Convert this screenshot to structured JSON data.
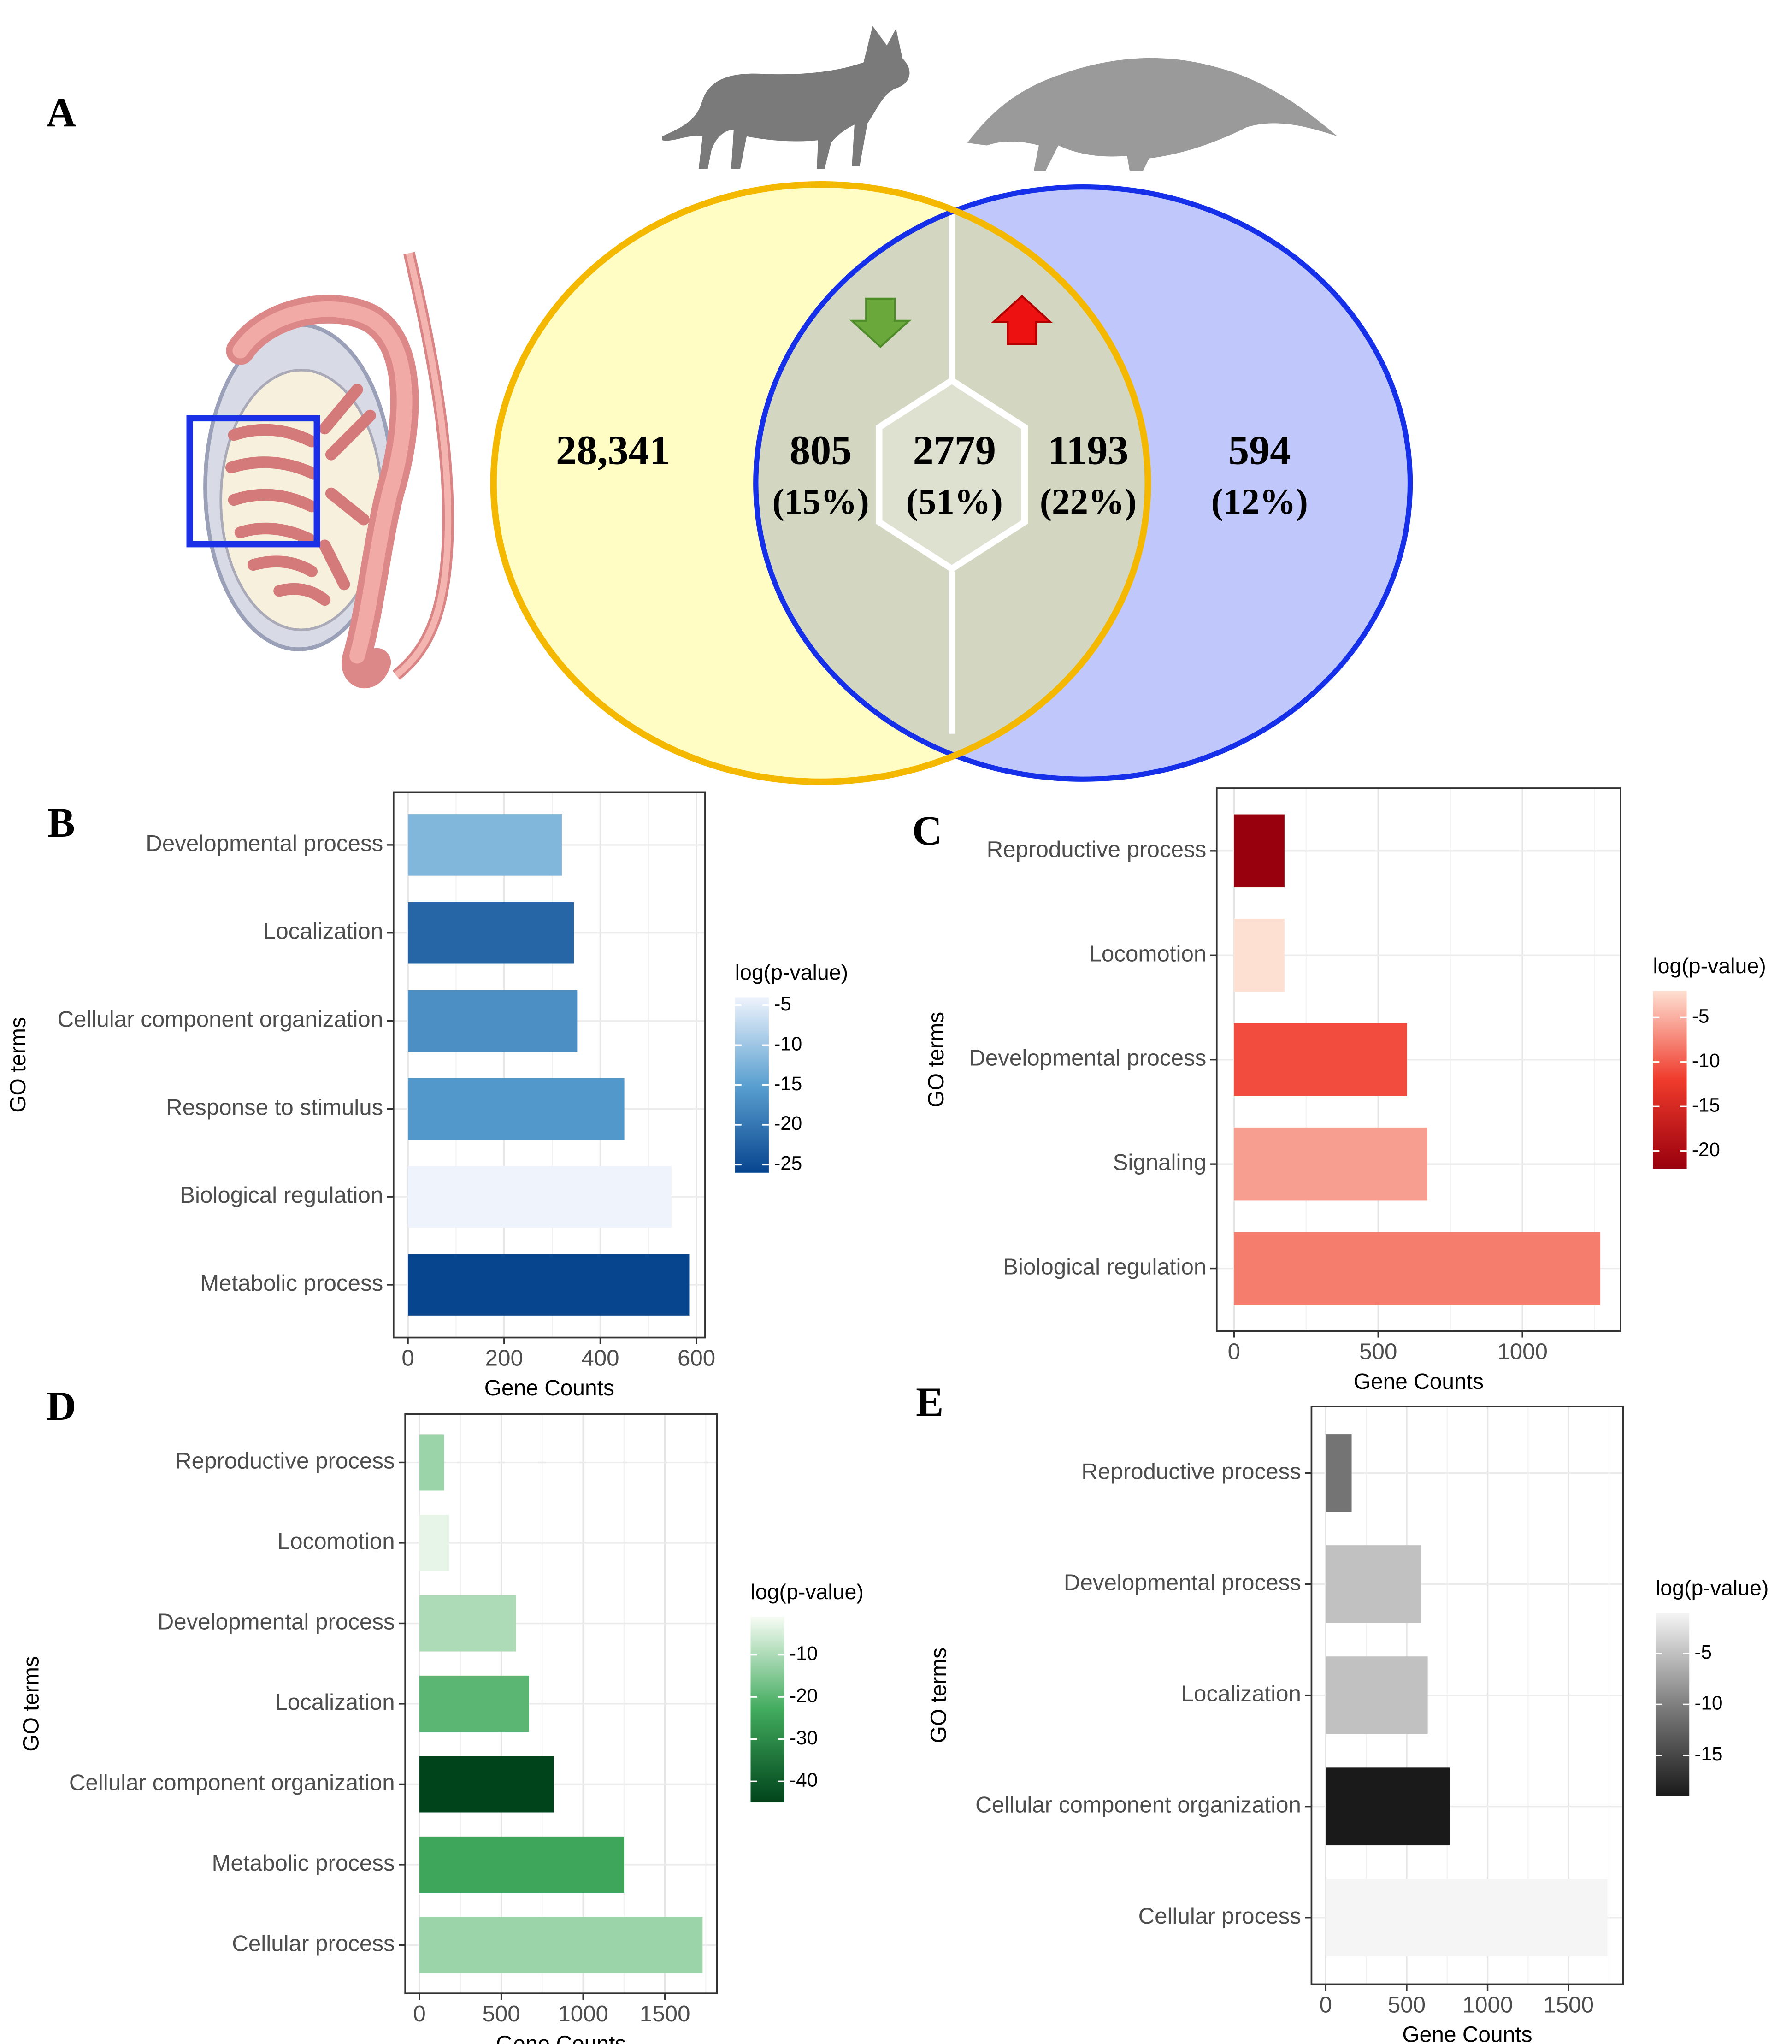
{
  "chart_data": [
    {
      "type": "venn",
      "panel": "A",
      "regions": [
        {
          "value": 28341,
          "label": "28,341"
        },
        {
          "value": 805,
          "percent": 15,
          "percent_label": "(15%)"
        },
        {
          "value": 2779,
          "percent": 51,
          "percent_label": "(51%)"
        },
        {
          "value": 1193,
          "percent": 22,
          "percent_label": "(22%)"
        },
        {
          "value": 594,
          "percent": 12,
          "percent_label": "(12%)"
        }
      ]
    },
    {
      "type": "bar",
      "orientation": "horizontal",
      "panel": "B",
      "xlabel": "Gene Counts",
      "ylabel": "GO terms",
      "categories": [
        "Developmental process",
        "Localization",
        "Cellular component organization",
        "Response to stimulus",
        "Biological regulation",
        "Metabolic process"
      ],
      "values": [
        320,
        345,
        352,
        450,
        548,
        585
      ],
      "logp": [
        -12,
        -22,
        -17,
        -16,
        -4,
        -26
      ],
      "xlim": [
        -30,
        618
      ],
      "xticks": [
        0,
        200,
        400,
        600
      ],
      "grid": true,
      "colorbar": {
        "title": "log(p-value)",
        "lim": [
          -26,
          -4
        ],
        "ticks": [
          -5,
          -10,
          -15,
          -20,
          -25
        ],
        "colorscale": [
          "#08458f",
          "#5aa0d0",
          "#eef3fc"
        ]
      }
    },
    {
      "type": "bar",
      "orientation": "horizontal",
      "panel": "C",
      "xlabel": "Gene Counts",
      "ylabel": "GO terms",
      "categories": [
        "Reproductive process",
        "Locomotion",
        "Developmental process",
        "Signaling",
        "Biological regulation"
      ],
      "values": [
        175,
        175,
        600,
        670,
        1270
      ],
      "logp": [
        -22,
        -2,
        -11,
        -6,
        -8
      ],
      "xlim": [
        -60,
        1340
      ],
      "xticks": [
        0,
        500,
        1000
      ],
      "grid": true,
      "colorbar": {
        "title": "log(p-value)",
        "lim": [
          -22,
          -2
        ],
        "ticks": [
          -5,
          -10,
          -15,
          -20
        ],
        "colorscale": [
          "#99000d",
          "#ef3b2c",
          "#fee0d2"
        ]
      }
    },
    {
      "type": "bar",
      "orientation": "horizontal",
      "panel": "D",
      "xlabel": "Gene Counts",
      "ylabel": "GO terms",
      "categories": [
        "Reproductive process",
        "Locomotion",
        "Developmental process",
        "Localization",
        "Cellular component organization",
        "Metabolic process",
        "Cellular process"
      ],
      "values": [
        150,
        180,
        590,
        670,
        820,
        1250,
        1730
      ],
      "logp": [
        -12,
        -3,
        -10,
        -20,
        -45,
        -24,
        -12
      ],
      "xlim": [
        -87,
        1817
      ],
      "xticks": [
        0,
        500,
        1000,
        1500
      ],
      "grid": true,
      "colorbar": {
        "title": "log(p-value)",
        "lim": [
          -45,
          -1
        ],
        "ticks": [
          -10,
          -20,
          -30,
          -40
        ],
        "colorscale": [
          "#00441b",
          "#41ab5d",
          "#f7fcf5"
        ]
      }
    },
    {
      "type": "bar",
      "orientation": "horizontal",
      "panel": "E",
      "xlabel": "Gene Counts",
      "ylabel": "GO terms",
      "categories": [
        "Reproductive process",
        "Developmental process",
        "Localization",
        "Cellular component organization",
        "Cellular process"
      ],
      "values": [
        160,
        590,
        630,
        770,
        1740
      ],
      "logp": [
        -11,
        -5,
        -5,
        -19,
        -1
      ],
      "xlim": [
        -88,
        1837
      ],
      "xticks": [
        0,
        500,
        1000,
        1500
      ],
      "grid": true,
      "colorbar": {
        "title": "log(p-value)",
        "lim": [
          -19,
          -1
        ],
        "ticks": [
          -5,
          -10,
          -15
        ],
        "colorscale": [
          "#1a1a1a",
          "#7f7f7f",
          "#f5f5f5"
        ]
      }
    }
  ]
}
